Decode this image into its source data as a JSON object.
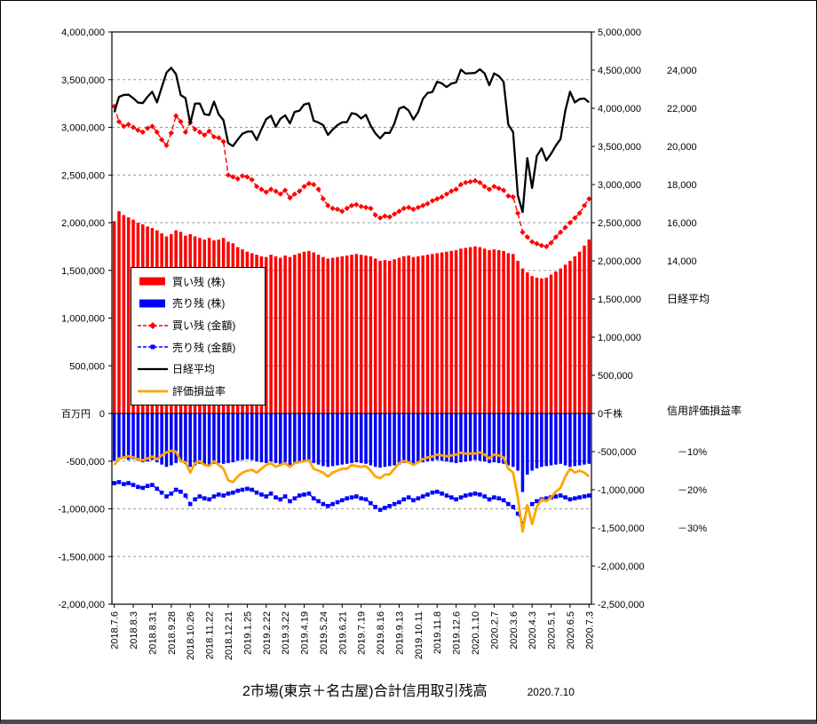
{
  "title": {
    "text": "2市場(東京＋名古屋)合計信用取引残高",
    "date": "2020.7.10"
  },
  "legend": {
    "items": [
      {
        "label": "買い残 (株)",
        "color": "#FF0000",
        "swatch": "bar"
      },
      {
        "label": "売り残 (株)",
        "color": "#0000FF",
        "swatch": "bar"
      },
      {
        "label": "買い残 (金額)",
        "color": "#FF0000",
        "swatch": "dashed-line-diamond"
      },
      {
        "label": "売り残 (金額)",
        "color": "#0000FF",
        "swatch": "dashed-line-square"
      },
      {
        "label": "日経平均",
        "color": "#000000",
        "swatch": "line"
      },
      {
        "label": "評価損益率",
        "color": "#FFA500",
        "swatch": "line-thick"
      }
    ]
  },
  "chart_data": {
    "type": "combo",
    "n_points": 101,
    "colors": {
      "buy": "#FF0000",
      "sell": "#0000FF",
      "nikkei": "#000000",
      "hyoka": "#FFA500",
      "grid": "#9a9a9a"
    },
    "axes": {
      "left": {
        "unit": "百万円",
        "range": [
          4000000,
          -2000000
        ],
        "values": [
          4000000,
          3500000,
          3000000,
          2500000,
          2000000,
          1500000,
          1000000,
          500000,
          0,
          -500000,
          -1000000,
          -1500000,
          -2000000
        ],
        "labels": [
          "4,000,000",
          "3,500,000",
          "3,000,000",
          "2,500,000",
          "2,000,000",
          "1,500,000",
          "1,000,000",
          "500,000",
          "0",
          "-500,000",
          "-1,000,000",
          "-1,500,000",
          "-2,000,000"
        ]
      },
      "right": {
        "unit": "千株",
        "range": [
          5000000,
          -2500000
        ],
        "values": [
          5000000,
          4500000,
          4000000,
          3500000,
          3000000,
          2500000,
          2000000,
          1500000,
          1000000,
          500000,
          0,
          -500000,
          -1000000,
          -1500000,
          -2000000,
          -2500000
        ],
        "labels": [
          "5,000,000",
          "4,500,000",
          "4,000,000",
          "3,500,000",
          "3,000,000",
          "2,500,000",
          "2,000,000",
          "1,500,000",
          "1,000,000",
          "500,000",
          "0千株",
          "-500,000",
          "-1,000,000",
          "-1,500,000",
          "-2,000,000",
          "-2,500,000"
        ]
      },
      "nikkei": {
        "title": "日経平均",
        "values": [
          24000,
          22000,
          20000,
          18000,
          16000,
          14000
        ],
        "labels": [
          "24,000",
          "22,000",
          "20,000",
          "18,000",
          "16,000",
          "14,000"
        ]
      },
      "pct": {
        "title": "信用評価損益率",
        "values": [
          -10,
          -20,
          -30
        ],
        "labels": [
          "－10%",
          "－20%",
          "－30%"
        ]
      }
    },
    "x_ticks": {
      "every": 4,
      "labels": [
        "2018.7.6",
        "2018.8.3",
        "2018.8.31",
        "2018.9.28",
        "2018.10.26",
        "2018.11.22",
        "2018.12.21",
        "2019.1.25",
        "2019.2.22",
        "2019.3.22",
        "2019.4.19",
        "2019.5.24",
        "2019.6.21",
        "2019.7.19",
        "2019.8.16",
        "2019.9.13",
        "2019.10.11",
        "2019.11.8",
        "2019.12.6",
        "2020.1.10",
        "2020.2.7",
        "2020.3.6",
        "2020.4.3",
        "2020.5.1",
        "2020.6.5",
        "2020.7.3"
      ]
    },
    "series": [
      {
        "name": "買い残 (株)",
        "type": "bar",
        "yaxis": "right",
        "unit": "千株",
        "scale": 1000,
        "color": "#FF0000",
        "values": [
          2520,
          2650,
          2600,
          2570,
          2540,
          2500,
          2480,
          2450,
          2430,
          2400,
          2360,
          2320,
          2350,
          2400,
          2380,
          2330,
          2350,
          2320,
          2300,
          2280,
          2300,
          2270,
          2280,
          2300,
          2250,
          2230,
          2180,
          2150,
          2120,
          2100,
          2080,
          2060,
          2050,
          2080,
          2060,
          2040,
          2070,
          2050,
          2080,
          2100,
          2120,
          2130,
          2110,
          2080,
          2050,
          2030,
          2040,
          2050,
          2060,
          2070,
          2080,
          2090,
          2080,
          2070,
          2060,
          2030,
          2000,
          2010,
          2000,
          2020,
          2040,
          2060,
          2070,
          2050,
          2060,
          2070,
          2080,
          2090,
          2100,
          2110,
          2120,
          2130,
          2140,
          2160,
          2170,
          2180,
          2190,
          2180,
          2160,
          2140,
          2150,
          2140,
          2130,
          2100,
          2090,
          2000,
          1900,
          1850,
          1800,
          1780,
          1770,
          1780,
          1820,
          1860,
          1900,
          1950,
          2000,
          2060,
          2120,
          2200,
          2280
        ]
      },
      {
        "name": "売り残 (株)",
        "type": "bar",
        "yaxis": "right",
        "unit": "千株",
        "scale": 1000,
        "color": "#0000FF",
        "values": [
          -620,
          -600,
          -590,
          -610,
          -600,
          -620,
          -640,
          -630,
          -610,
          -640,
          -670,
          -700,
          -680,
          -650,
          -630,
          -660,
          -700,
          -680,
          -660,
          -670,
          -680,
          -660,
          -650,
          -660,
          -650,
          -640,
          -620,
          -610,
          -600,
          -610,
          -630,
          -640,
          -650,
          -630,
          -650,
          -670,
          -650,
          -680,
          -660,
          -640,
          -630,
          -620,
          -650,
          -670,
          -690,
          -700,
          -690,
          -680,
          -670,
          -660,
          -650,
          -640,
          -650,
          -660,
          -680,
          -700,
          -710,
          -700,
          -690,
          -680,
          -670,
          -650,
          -640,
          -660,
          -650,
          -640,
          -630,
          -620,
          -610,
          -620,
          -630,
          -640,
          -650,
          -640,
          -630,
          -620,
          -610,
          -620,
          -630,
          -650,
          -640,
          -650,
          -660,
          -680,
          -700,
          -750,
          -1030,
          -800,
          -750,
          -720,
          -700,
          -690,
          -680,
          -670,
          -660,
          -680,
          -700,
          -690,
          -680,
          -670,
          -660
        ]
      },
      {
        "name": "買い残 (金額)",
        "type": "line",
        "yaxis": "left",
        "unit": "百万円",
        "scale": 1000,
        "color": "#FF0000",
        "dash": "6 3",
        "width": 1.4,
        "marker": "diamond",
        "values": [
          3220,
          3060,
          3010,
          3030,
          3000,
          2970,
          2950,
          2990,
          3010,
          2950,
          2870,
          2810,
          2940,
          3120,
          3060,
          2950,
          3050,
          2980,
          2950,
          2920,
          2960,
          2900,
          2890,
          2850,
          2500,
          2480,
          2460,
          2490,
          2480,
          2450,
          2380,
          2350,
          2320,
          2350,
          2330,
          2300,
          2340,
          2260,
          2300,
          2330,
          2380,
          2410,
          2400,
          2350,
          2250,
          2180,
          2150,
          2140,
          2120,
          2150,
          2180,
          2190,
          2170,
          2160,
          2150,
          2080,
          2050,
          2070,
          2060,
          2090,
          2120,
          2150,
          2160,
          2140,
          2160,
          2180,
          2200,
          2230,
          2250,
          2270,
          2300,
          2330,
          2350,
          2400,
          2420,
          2430,
          2440,
          2420,
          2380,
          2350,
          2380,
          2360,
          2340,
          2280,
          2270,
          2100,
          1900,
          1850,
          1800,
          1780,
          1760,
          1750,
          1790,
          1850,
          1900,
          1950,
          2000,
          2050,
          2100,
          2180,
          2250
        ]
      },
      {
        "name": "売り残 (金額)",
        "type": "line",
        "yaxis": "left",
        "unit": "百万円",
        "scale": 1000,
        "color": "#0000FF",
        "dash": "6 3",
        "width": 1.4,
        "marker": "square",
        "values": [
          -730,
          -720,
          -740,
          -730,
          -750,
          -770,
          -780,
          -760,
          -750,
          -790,
          -830,
          -870,
          -840,
          -800,
          -820,
          -860,
          -950,
          -900,
          -870,
          -890,
          -900,
          -870,
          -850,
          -860,
          -840,
          -830,
          -810,
          -800,
          -790,
          -800,
          -830,
          -850,
          -870,
          -840,
          -880,
          -900,
          -870,
          -920,
          -890,
          -860,
          -850,
          -840,
          -890,
          -920,
          -950,
          -970,
          -950,
          -930,
          -910,
          -890,
          -880,
          -870,
          -890,
          -900,
          -940,
          -980,
          -1010,
          -990,
          -970,
          -950,
          -930,
          -900,
          -880,
          -910,
          -890,
          -870,
          -850,
          -830,
          -820,
          -840,
          -860,
          -880,
          -900,
          -880,
          -860,
          -850,
          -840,
          -850,
          -870,
          -900,
          -880,
          -890,
          -910,
          -950,
          -980,
          -1050,
          -1150,
          -1000,
          -950,
          -920,
          -900,
          -890,
          -880,
          -870,
          -860,
          -880,
          -900,
          -890,
          -880,
          -870,
          -860
        ]
      },
      {
        "name": "日経平均",
        "type": "line",
        "yaxis": "nikkei",
        "scale": 1,
        "color": "#000000",
        "width": 2.3,
        "values": [
          21788,
          22597,
          22698,
          22713,
          22525,
          22298,
          22270,
          22602,
          22865,
          22307,
          23095,
          23870,
          24120,
          23784,
          22695,
          22532,
          21185,
          22243,
          22250,
          21680,
          21647,
          22351,
          21679,
          21375,
          20166,
          20015,
          20360,
          20666,
          20774,
          20788,
          20333,
          20901,
          21426,
          21603,
          21026,
          21451,
          21627,
          21206,
          21808,
          21871,
          22201,
          22259,
          21345,
          21250,
          21117,
          20601,
          20884,
          21117,
          21259,
          21276,
          21746,
          21686,
          21467,
          21658,
          21087,
          20685,
          20419,
          20711,
          20704,
          21200,
          21988,
          22079,
          21879,
          21410,
          21799,
          22493,
          22800,
          22851,
          23392,
          23303,
          23113,
          23294,
          23354,
          24023,
          23817,
          23838,
          23851,
          24041,
          23827,
          23205,
          23828,
          23687,
          23387,
          21143,
          20750,
          17431,
          16553,
          19389,
          17820,
          19499,
          19897,
          19262,
          19619,
          20037,
          20388,
          21877,
          22864,
          22305,
          22478,
          22512,
          22306
        ]
      },
      {
        "name": "評価損益率",
        "type": "line",
        "yaxis": "pct",
        "scale": 1,
        "color": "#FFA500",
        "width": 2.8,
        "values": [
          -13.5,
          -11.8,
          -11.5,
          -11.2,
          -11.5,
          -12,
          -12.3,
          -11.8,
          -11.3,
          -12,
          -11,
          -10.2,
          -9.8,
          -10,
          -12.5,
          -12.8,
          -15.5,
          -13,
          -12.5,
          -13.5,
          -13.8,
          -12.5,
          -13.5,
          -14.5,
          -17.5,
          -18,
          -16.5,
          -15.5,
          -15,
          -14.8,
          -15.5,
          -14.5,
          -13.5,
          -13,
          -14,
          -13.5,
          -13,
          -14,
          -13,
          -12.8,
          -12.5,
          -12.3,
          -14.5,
          -15,
          -15.5,
          -16.5,
          -15.5,
          -15,
          -14.5,
          -14.5,
          -13.5,
          -13.8,
          -14,
          -13.8,
          -15,
          -16.5,
          -17,
          -16,
          -16,
          -14.5,
          -13,
          -12.5,
          -12.8,
          -13.5,
          -12.8,
          -12,
          -11.5,
          -11.3,
          -10.8,
          -11,
          -11.2,
          -11,
          -10.8,
          -10.3,
          -10.5,
          -10.5,
          -10.5,
          -10.2,
          -10.8,
          -11.8,
          -10.8,
          -11,
          -11.5,
          -14.5,
          -15.5,
          -22,
          -31,
          -24,
          -29,
          -24.5,
          -22.5,
          -23,
          -22,
          -20.5,
          -19.5,
          -16.5,
          -14.5,
          -15.5,
          -15,
          -15.5,
          -16.5
        ]
      }
    ]
  }
}
